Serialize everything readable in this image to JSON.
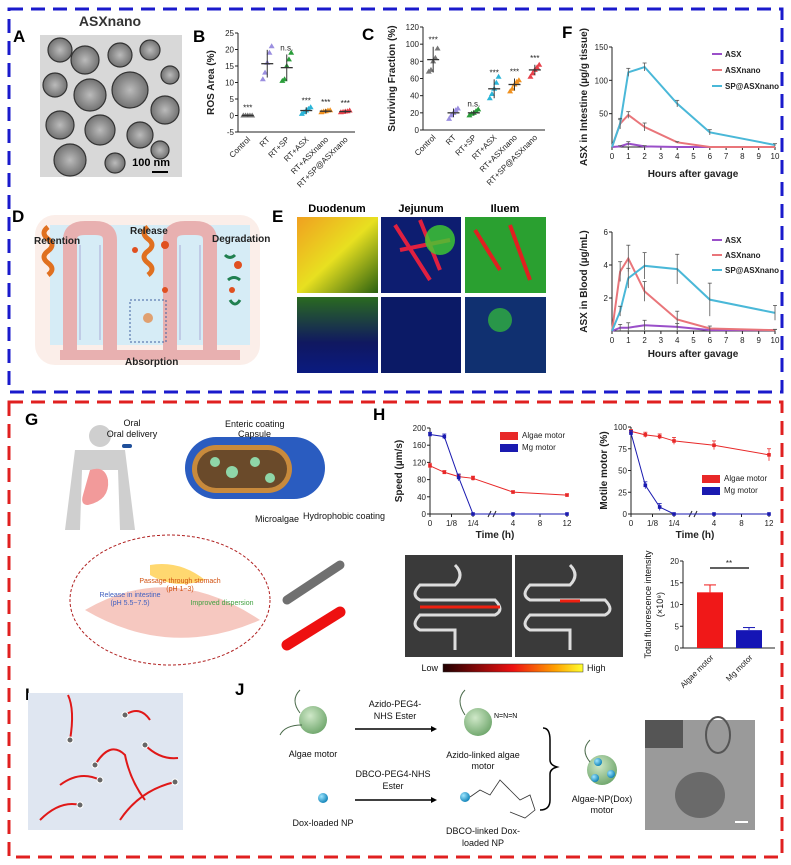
{
  "panels": {
    "A": {
      "label": "A",
      "title": "ASXnano",
      "scale_bar": "100 nm"
    },
    "B": {
      "label": "B"
    },
    "C": {
      "label": "C"
    },
    "D": {
      "label": "D",
      "retention": "Retention",
      "release": "Release",
      "degradation": "Degradation",
      "absorption": "Absorption"
    },
    "E": {
      "label": "E",
      "columns": [
        "Duodenum",
        "Jejunum",
        "Iluem"
      ]
    },
    "F": {
      "label": "F"
    },
    "G": {
      "label": "G",
      "oral_delivery": "Oral delivery",
      "enteric_coating": "Enteric coating",
      "capsule": "Capsule",
      "microalgae": "Microalgae",
      "hydrophobic_coating": "Hydrophobic coating",
      "stomach": "Passage through stomach",
      "stomach_ph": "(pH 1~3)",
      "release": "Release in intestine",
      "release_ph": "(pH 5.5~7.5)",
      "dispersion": "Improved dispersion"
    },
    "H": {
      "label": "H",
      "colorbar_low": "Low",
      "colorbar_high": "High"
    },
    "I": {
      "label": "I"
    },
    "J": {
      "label": "J",
      "algae_motor": "Algae motor",
      "reagent1a": "Azido-PEG4-",
      "reagent1b": "NHS Ester",
      "azido_a": "Azido-linked algae",
      "azido_b": "motor",
      "reagent2a": "DBCO-PEG4-NHS",
      "reagent2b": "Ester",
      "dox_np": "Dox-loaded NP",
      "dbco_a": "DBCO-linked Dox-",
      "dbco_b": "loaded NP",
      "product_a": "Algae-NP(Dox)",
      "product_b": "motor"
    }
  },
  "colors": {
    "top_border": "#1a1acc",
    "bottom_border": "#e02020"
  },
  "chart_data": [
    {
      "id": "B",
      "type": "scatter",
      "ylabel": "ROS Area (%)",
      "ylim": [
        -5,
        25
      ],
      "yticks": [
        -5,
        0,
        5,
        10,
        15,
        20,
        25
      ],
      "categories": [
        "Control",
        "RT",
        "RT+SP",
        "RT+ASX",
        "RT+ASXnano",
        "RT+SP@ASXnano"
      ],
      "colors": [
        "#777777",
        "#9b8fe0",
        "#2a9d3a",
        "#2bb5d8",
        "#f0901e",
        "#e8404a"
      ],
      "means": [
        0,
        15.7,
        14.5,
        1.5,
        1.3,
        1.2
      ],
      "sd": [
        0.3,
        4.2,
        4,
        1,
        0.6,
        0.5
      ],
      "points": [
        [
          0,
          0,
          0,
          0,
          0
        ],
        [
          11,
          13,
          16,
          19,
          21
        ],
        [
          10.5,
          11,
          15,
          17,
          19
        ],
        [
          0.5,
          1,
          1.5,
          2,
          2.5
        ],
        [
          1,
          1.2,
          1.3,
          1.5,
          1.6
        ],
        [
          1,
          1.1,
          1.2,
          1.3,
          1.5
        ]
      ],
      "annotations": [
        "***",
        "",
        "n.s.",
        "***",
        "***",
        "***"
      ]
    },
    {
      "id": "C",
      "type": "scatter",
      "ylabel": "Surviving Fraction (%)",
      "ylim": [
        0,
        120
      ],
      "yticks": [
        0,
        20,
        40,
        60,
        80,
        100,
        120
      ],
      "categories": [
        "Control",
        "RT",
        "RT+SP",
        "RT+ASX",
        "RT+ASXnano",
        "RT+SP@ASXnano"
      ],
      "colors": [
        "#777777",
        "#9b8fe0",
        "#2a9d3a",
        "#2bb5d8",
        "#f0901e",
        "#e8404a"
      ],
      "means": [
        82,
        20,
        20,
        48,
        53,
        70
      ],
      "sd": [
        15,
        5,
        3,
        11,
        7,
        6
      ],
      "points": [
        [
          68,
          70,
          80,
          84,
          95
        ],
        [
          13,
          17,
          20,
          23,
          25
        ],
        [
          17,
          19,
          20,
          22,
          24
        ],
        [
          37,
          42,
          48,
          55,
          62
        ],
        [
          45,
          48,
          53,
          56,
          58
        ],
        [
          62,
          66,
          70,
          73,
          76
        ]
      ],
      "annotations": [
        "***",
        "",
        "n.s.",
        "***",
        "***",
        "***"
      ]
    },
    {
      "id": "F-intestine",
      "type": "line",
      "ylabel": "ASX in Intestine (µg/g tissue)",
      "xlabel": "Hours after gavage",
      "xlim": [
        0,
        10
      ],
      "xticks": [
        0,
        1,
        2,
        3,
        4,
        5,
        6,
        7,
        8,
        9,
        10
      ],
      "ylim": [
        0,
        150
      ],
      "yticks": [
        50,
        100,
        150
      ],
      "legend": "top-right",
      "x": [
        0,
        0.5,
        1,
        2,
        4,
        6,
        10
      ],
      "series": [
        {
          "name": "ASX",
          "color": "#9a4fc9",
          "values": [
            0,
            1,
            5,
            1,
            0,
            0,
            0
          ],
          "err": [
            0,
            1,
            3,
            1,
            0,
            0,
            0
          ]
        },
        {
          "name": "ASXnano",
          "color": "#e9757a",
          "values": [
            0,
            35,
            48,
            30,
            7,
            0,
            0
          ],
          "err": [
            0,
            6,
            5,
            6,
            1,
            0,
            0
          ]
        },
        {
          "name": "SP@ASXnano",
          "color": "#4ab8d8",
          "values": [
            0,
            35,
            112,
            120,
            65,
            22,
            3
          ],
          "err": [
            0,
            8,
            6,
            6,
            5,
            4,
            2
          ]
        }
      ]
    },
    {
      "id": "F-blood",
      "type": "line",
      "ylabel": "ASX in Blood (µg/mL)",
      "xlabel": "Hours after gavage",
      "xlim": [
        0,
        10
      ],
      "xticks": [
        0,
        1,
        2,
        3,
        4,
        5,
        6,
        7,
        8,
        9,
        10
      ],
      "ylim": [
        0,
        6
      ],
      "yticks": [
        2,
        4,
        6
      ],
      "legend": "top-right",
      "x": [
        0,
        0.5,
        1,
        2,
        4,
        6,
        10
      ],
      "series": [
        {
          "name": "ASX",
          "color": "#9a4fc9",
          "values": [
            0,
            0.2,
            0.2,
            0.35,
            0.25,
            0.05,
            0.05
          ],
          "err": [
            0,
            0.2,
            0.3,
            0.3,
            0.2,
            0.1,
            0.05
          ]
        },
        {
          "name": "ASXnano",
          "color": "#e9757a",
          "values": [
            0,
            3.6,
            4.4,
            2.4,
            0.7,
            0.15,
            0.05
          ],
          "err": [
            0,
            0.6,
            0.8,
            0.6,
            0.5,
            0.15,
            0.05
          ]
        },
        {
          "name": "SP@ASXnano",
          "color": "#4ab8d8",
          "values": [
            0,
            1.2,
            3.2,
            3.95,
            3.75,
            1.9,
            1.1
          ],
          "err": [
            0,
            0.3,
            0.6,
            0.8,
            0.9,
            1.0,
            0.45
          ]
        }
      ]
    },
    {
      "id": "H-speed",
      "type": "line",
      "ylabel": "Speed (µm/s)",
      "xlabel": "Time (h)",
      "x_axis_break": true,
      "xticks": [
        0,
        0.125,
        0.25,
        4,
        8,
        12
      ],
      "xtick_labels": [
        "0",
        "1/8",
        "1/4",
        "4",
        "8",
        "12"
      ],
      "ylim": [
        0,
        200
      ],
      "yticks": [
        0,
        40,
        80,
        120,
        160,
        200
      ],
      "legend": "top-right",
      "x": [
        0,
        0.0833,
        0.1667,
        0.25,
        4,
        12
      ],
      "series": [
        {
          "name": "Algae motor",
          "color": "#e82828",
          "values": [
            112,
            97,
            87,
            83,
            51,
            44
          ],
          "err": [
            6,
            4,
            5,
            5,
            3,
            3
          ]
        },
        {
          "name": "Mg motor",
          "color": "#1a1ab0",
          "values": [
            185,
            180,
            85,
            0,
            0,
            0
          ],
          "err": [
            5,
            6,
            8,
            0,
            0,
            0
          ]
        }
      ]
    },
    {
      "id": "H-motile",
      "type": "line",
      "ylabel": "Motile motor (%)",
      "xlabel": "Time (h)",
      "x_axis_break": true,
      "xticks": [
        0,
        0.125,
        0.25,
        4,
        8,
        12
      ],
      "xtick_labels": [
        "0",
        "1/8",
        "1/4",
        "4",
        "8",
        "12"
      ],
      "ylim": [
        0,
        100
      ],
      "yticks": [
        0,
        25,
        50,
        75,
        100
      ],
      "legend": "right",
      "x": [
        0,
        0.0833,
        0.1667,
        0.25,
        4,
        12
      ],
      "series": [
        {
          "name": "Algae motor",
          "color": "#e82828",
          "values": [
            95,
            91,
            89,
            84,
            79,
            68
          ],
          "err": [
            2,
            3,
            3,
            4,
            5,
            7
          ]
        },
        {
          "name": "Mg motor",
          "color": "#1a1ab0",
          "values": [
            93,
            33,
            8,
            0,
            0,
            0
          ],
          "err": [
            3,
            4,
            4,
            0,
            0,
            0
          ]
        }
      ]
    },
    {
      "id": "H-fluorescence",
      "type": "bar",
      "ylabel": "Total fluorescence intensity",
      "ylabel2": "(×10⁹)",
      "categories": [
        "Algae motor",
        "Mg motor"
      ],
      "values": [
        12.8,
        4.1
      ],
      "err": [
        1.7,
        0.6
      ],
      "colors": [
        "#f01818",
        "#1515b5"
      ],
      "ylim": [
        0,
        20
      ],
      "yticks": [
        0,
        5,
        10,
        15,
        20
      ],
      "significance": "**"
    }
  ]
}
